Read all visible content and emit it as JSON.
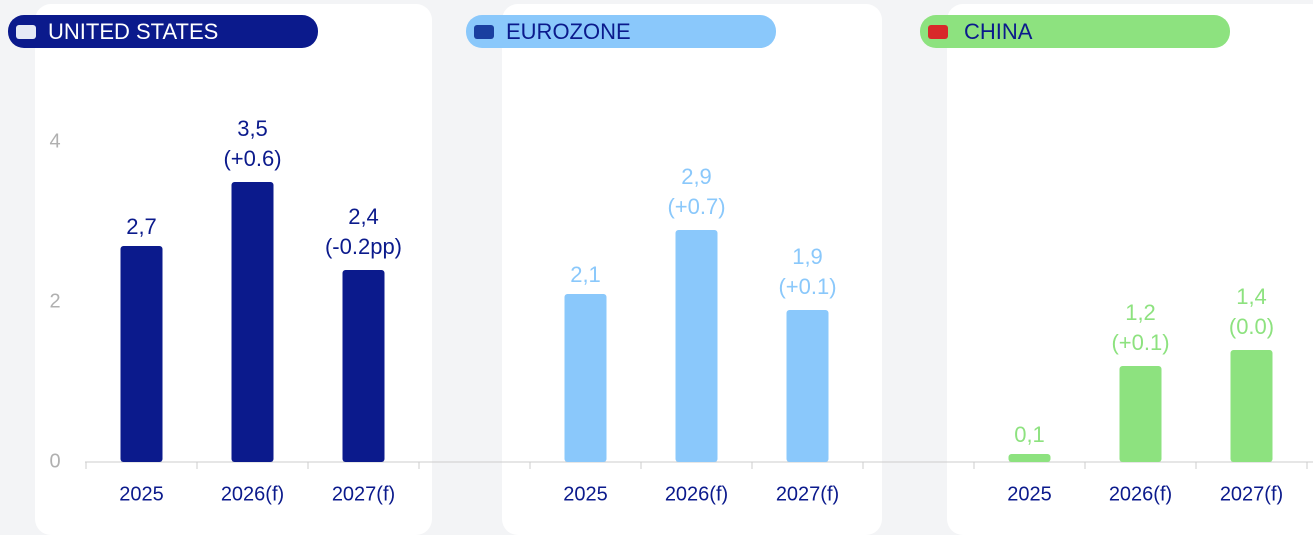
{
  "chart_data": [
    {
      "type": "bar",
      "title": "UNITED STATES",
      "color": "#0b1a8c",
      "categories": [
        "2025",
        "2026(f)",
        "2027(f)"
      ],
      "values": [
        2.7,
        3.5,
        2.4
      ],
      "value_labels": [
        "2,7",
        "3,5",
        "2,4"
      ],
      "changes": [
        null,
        "(+0.6)",
        "(-0.2pp)"
      ],
      "ylim": [
        0,
        4.2
      ],
      "yticks": [
        0,
        2,
        4
      ]
    },
    {
      "type": "bar",
      "title": "EUROZONE",
      "color": "#8ac8fb",
      "categories": [
        "2025",
        "2026(f)",
        "2027(f)"
      ],
      "values": [
        2.1,
        2.9,
        1.9
      ],
      "value_labels": [
        "2,1",
        "2,9",
        "1,9"
      ],
      "changes": [
        null,
        "(+0.7)",
        "(+0.1)"
      ],
      "ylim": [
        0,
        4.2
      ]
    },
    {
      "type": "bar",
      "title": "CHINA",
      "color": "#8de27f",
      "categories": [
        "2025",
        "2026(f)",
        "2027(f)"
      ],
      "values": [
        0.1,
        1.2,
        1.4
      ],
      "value_labels": [
        "0,1",
        "1,2",
        "1,4"
      ],
      "changes": [
        null,
        "(+0.1)",
        "(0.0)"
      ],
      "ylim": [
        0,
        4.2
      ]
    }
  ]
}
